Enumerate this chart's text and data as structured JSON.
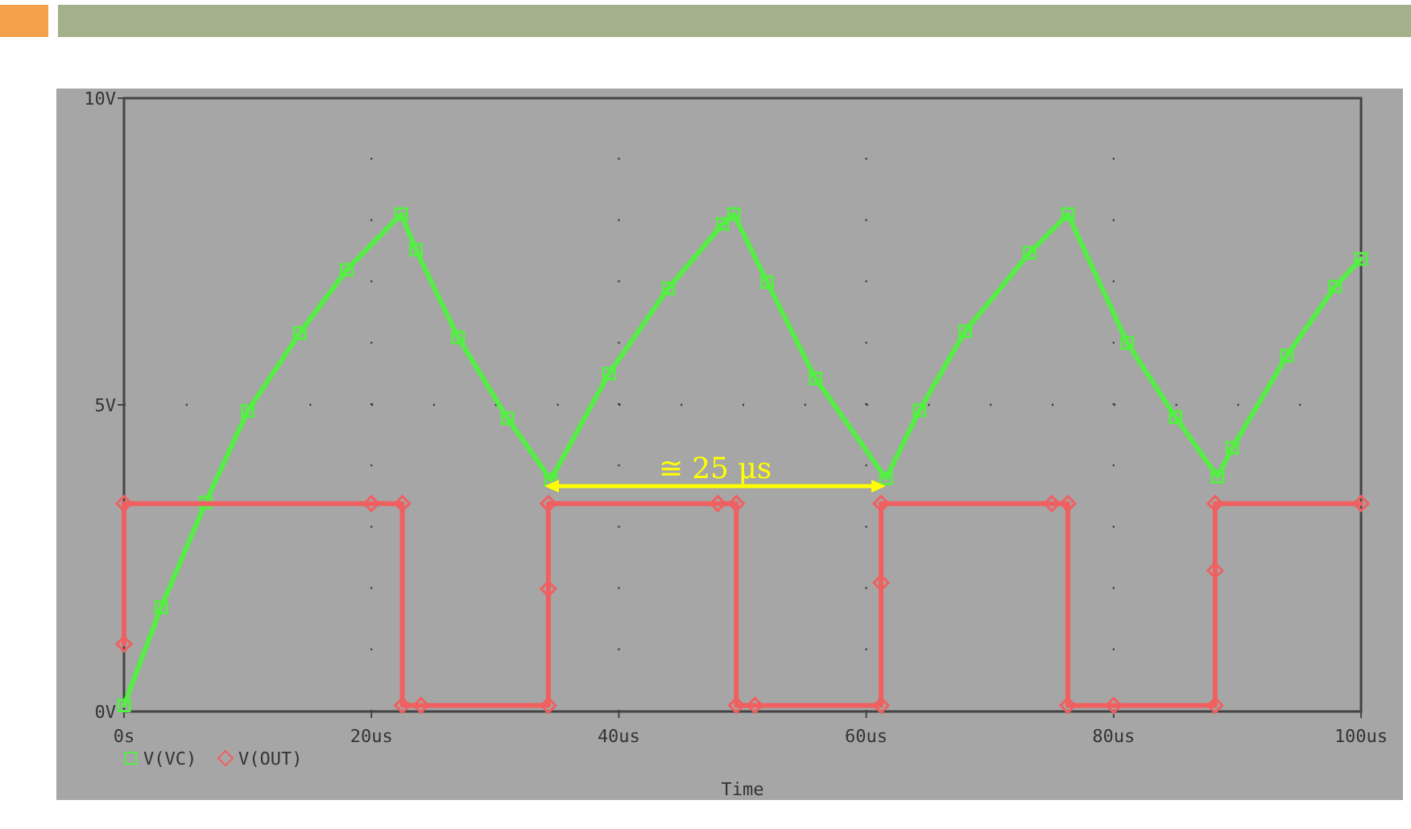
{
  "chart_data": {
    "type": "line",
    "xlabel": "Time",
    "xlim": [
      0,
      100
    ],
    "xticks": [
      {
        "value": 0,
        "label": "0s"
      },
      {
        "value": 20,
        "label": "20us"
      },
      {
        "value": 40,
        "label": "40us"
      },
      {
        "value": 60,
        "label": "60us"
      },
      {
        "value": 80,
        "label": "80us"
      },
      {
        "value": 100,
        "label": "100us"
      }
    ],
    "ylim": [
      0,
      10
    ],
    "yticks": [
      {
        "value": 0,
        "label": "0V"
      },
      {
        "value": 5,
        "label": "5V"
      },
      {
        "value": 10,
        "label": "10V"
      }
    ],
    "grid": true,
    "legend": "bottom left",
    "line_style": "solid",
    "series": [
      {
        "name": "V(VC)",
        "color": "#55ee44",
        "marker": "square",
        "x": [
          0,
          3,
          6.6,
          10,
          14.2,
          18,
          22.4,
          23.6,
          27,
          31,
          34.5,
          39.2,
          44,
          48.4,
          49.3,
          52,
          55.9,
          61.6,
          64.3,
          68,
          73.2,
          76.3,
          81.1,
          85,
          88.4,
          89.6,
          94,
          97.9,
          100
        ],
        "values": [
          0.1,
          1.7,
          3.41,
          4.9,
          6.17,
          7.2,
          8.11,
          7.53,
          6.1,
          4.78,
          3.78,
          5.51,
          6.9,
          7.95,
          8.11,
          7.0,
          5.43,
          3.8,
          4.91,
          6.2,
          7.48,
          8.11,
          6.01,
          4.8,
          3.83,
          4.3,
          5.8,
          6.93,
          7.38
        ]
      },
      {
        "name": "V(OUT)",
        "color": "#f06060",
        "marker": "diamond",
        "x": [
          0,
          0,
          20,
          22.5,
          22.5,
          24,
          34.3,
          34.3,
          34.3,
          48,
          49.5,
          49.5,
          51,
          61.2,
          61.2,
          61.2,
          75,
          76.3,
          76.3,
          80,
          88.2,
          88.2,
          88.2,
          100
        ],
        "values": [
          1.1,
          3.39,
          3.39,
          3.39,
          0.1,
          0.1,
          0.1,
          2.0,
          3.39,
          3.39,
          3.39,
          0.1,
          0.1,
          0.1,
          2.1,
          3.39,
          3.39,
          3.39,
          0.1,
          0.1,
          0.1,
          2.3,
          3.39,
          3.39
        ]
      }
    ],
    "annotations": [
      "≅ 25 μs"
    ]
  }
}
